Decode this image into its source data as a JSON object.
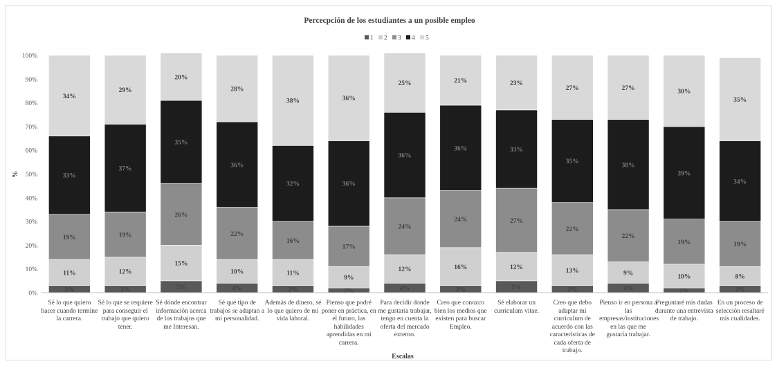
{
  "chart_data": {
    "type": "bar",
    "stacked": true,
    "percent": true,
    "title": "Percecpción de los estudiantes  a  un posible empleo",
    "xlabel": "Escalas",
    "ylabel": "%",
    "ylim": [
      0,
      100
    ],
    "ytick_labels": [
      "0%",
      "10%",
      "20%",
      "30%",
      "40%",
      "50%",
      "60%",
      "70%",
      "80%",
      "90%",
      "100%"
    ],
    "grid": false,
    "legend": "top-center",
    "categories": [
      "Sé lo que quiero hacer cuando termine la carrera.",
      "Sé lo que se requiere para conseguir el trabajo que quiero tener.",
      "Sé dónde encontrar información acerca de los trabajos que me Interesan.",
      "Sé qué tipo de trabajos se adaptan a mi personalidad.",
      "Además de dinero, sé lo que quiero de mi vida laboral.",
      "Pienso que podré poner en práctica, en el futuro, las habilidades aprendidas en mi carrera.",
      "Para decidir donde me gustaría trabajar, tengo en cuenta la oferta del mercado externo.",
      "Creo que conozco bien los medios que existen para buscar Empleo.",
      "Sé elaborar un currículum vitae.",
      "Creo que debo adaptar mi currículum de acuerdo con las características de cada oferta de trabajo.",
      "Pienso ir en persona a las empresas/instituciones en las que me gustaría trabajar.",
      "Preguntaré mis dudas durante una entrevista de trabajo.",
      "En un proceso de selección resaltaré mis cualidades."
    ],
    "series": [
      {
        "name": "1",
        "color": "#595959",
        "values": [
          3,
          3,
          5,
          4,
          3,
          2,
          4,
          3,
          5,
          3,
          4,
          2,
          3
        ],
        "labels": [
          "3%",
          "3%",
          "5%",
          "4%",
          "3%",
          "2%",
          "4%",
          "3%",
          "5%",
          "3%",
          "4%",
          "2%",
          "3%"
        ]
      },
      {
        "name": "2",
        "color": "#d0d0d0",
        "values": [
          11,
          12,
          15,
          10,
          11,
          9,
          12,
          16,
          12,
          13,
          9,
          10,
          8
        ],
        "labels": [
          "11%",
          "12%",
          "15%",
          "10%",
          "11%",
          "9%",
          "12%",
          "16%",
          "12%",
          "13%",
          "9%",
          "10%",
          "8%"
        ]
      },
      {
        "name": "3",
        "color": "#8c8c8c",
        "values": [
          19,
          19,
          26,
          22,
          16,
          17,
          24,
          24,
          27,
          22,
          22,
          19,
          19
        ],
        "labels": [
          "19%",
          "19%",
          "26%",
          "22%",
          "16%",
          "17%",
          "24%",
          "24%",
          "27%",
          "22%",
          "22%",
          "19%",
          "19%"
        ]
      },
      {
        "name": "4",
        "color": "#1c1c1c",
        "values": [
          33,
          37,
          35,
          36,
          32,
          36,
          36,
          36,
          33,
          35,
          38,
          39,
          34
        ],
        "labels": [
          "33%",
          "37%",
          "35%",
          "36%",
          "32%",
          "36%",
          "36%",
          "36%",
          "33%",
          "35%",
          "38%",
          "39%",
          "34%"
        ]
      },
      {
        "name": "5",
        "color": "#d9d9d9",
        "values": [
          34,
          29,
          20,
          28,
          38,
          36,
          25,
          21,
          23,
          27,
          27,
          30,
          35
        ],
        "labels": [
          "34%",
          "29%",
          "20%",
          "28%",
          "38%",
          "36%",
          "25%",
          "21%",
          "23%",
          "27%",
          "27%",
          "30%",
          "35%"
        ]
      }
    ]
  }
}
